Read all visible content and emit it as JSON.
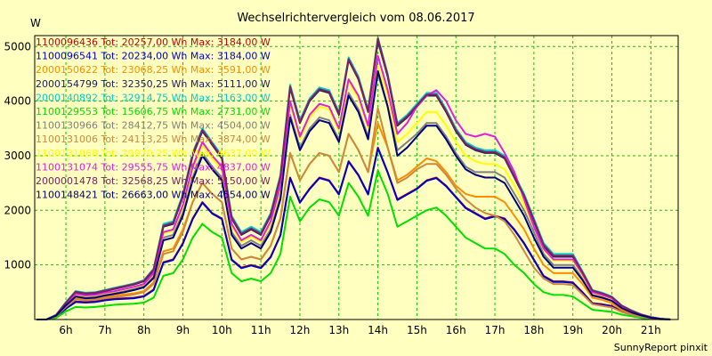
{
  "chart_data": {
    "type": "line",
    "title": "Wechselrichtervergleich vom 08.06.2017",
    "ylabel": "W",
    "credit": "SunnyReport pinxit",
    "ylim": [
      0,
      5200
    ],
    "xlim": [
      5.2,
      21.7
    ],
    "yticks": [
      1000,
      2000,
      3000,
      4000,
      5000
    ],
    "xticks": [
      6,
      7,
      8,
      9,
      10,
      11,
      12,
      13,
      14,
      15,
      16,
      17,
      18,
      19,
      20,
      21
    ],
    "xtick_labels": [
      "6h",
      "7h",
      "8h",
      "9h",
      "10h",
      "11h",
      "12h",
      "13h",
      "14h",
      "15h",
      "16h",
      "17h",
      "18h",
      "19h",
      "20h",
      "21h"
    ],
    "grid": true,
    "legend_position": "top-left",
    "x": [
      5.25,
      5.5,
      5.75,
      6,
      6.25,
      6.5,
      6.75,
      7,
      7.25,
      7.5,
      7.75,
      8,
      8.25,
      8.5,
      8.75,
      9,
      9.25,
      9.5,
      9.75,
      10,
      10.25,
      10.5,
      10.75,
      11,
      11.25,
      11.5,
      11.75,
      12,
      12.25,
      12.5,
      12.75,
      13,
      13.25,
      13.5,
      13.75,
      14,
      14.25,
      14.5,
      14.75,
      15,
      15.25,
      15.5,
      15.75,
      16,
      16.25,
      16.5,
      16.75,
      17,
      17.25,
      17.5,
      17.75,
      18,
      18.25,
      18.5,
      18.75,
      19,
      19.25,
      19.5,
      19.75,
      20,
      20.25,
      20.5,
      20.75,
      21,
      21.25,
      21.5
    ],
    "series": [
      {
        "name": "1100096436 Tot: 20257,00 Wh Max: 3184,00 W",
        "color": "#cc0000",
        "values": [
          0,
          0,
          50,
          200,
          330,
          320,
          330,
          360,
          380,
          390,
          400,
          430,
          550,
          1050,
          1100,
          1400,
          1850,
          2150,
          1950,
          1850,
          1100,
          950,
          1000,
          950,
          1150,
          1550,
          2600,
          2150,
          2400,
          2600,
          2550,
          2300,
          2900,
          2650,
          2300,
          3150,
          2700,
          2200,
          2300,
          2400,
          2550,
          2600,
          2450,
          2250,
          2050,
          1950,
          1850,
          1900,
          1850,
          1650,
          1400,
          1100,
          800,
          700,
          700,
          680,
          500,
          300,
          280,
          250,
          150,
          100,
          60,
          30,
          10,
          0
        ]
      },
      {
        "name": "1100096541 Tot: 20234,00 Wh Max: 3184,00 W",
        "color": "#0000cc",
        "values": [
          0,
          0,
          50,
          200,
          320,
          310,
          320,
          350,
          370,
          380,
          390,
          420,
          540,
          1040,
          1090,
          1390,
          1840,
          2140,
          1940,
          1840,
          1090,
          940,
          990,
          940,
          1140,
          1540,
          2590,
          2140,
          2390,
          2590,
          2540,
          2290,
          2890,
          2640,
          2290,
          3140,
          2690,
          2190,
          2290,
          2390,
          2540,
          2590,
          2440,
          2240,
          2040,
          1940,
          1840,
          1890,
          1840,
          1640,
          1390,
          1090,
          790,
          690,
          690,
          670,
          490,
          290,
          270,
          240,
          140,
          90,
          50,
          20,
          5,
          0
        ]
      },
      {
        "name": "2000150622 Tot: 23068,25 Wh Max: 3591,00 W",
        "color": "#ff8c00",
        "values": [
          0,
          0,
          60,
          240,
          400,
          380,
          390,
          420,
          440,
          460,
          480,
          520,
          680,
          1250,
          1300,
          1650,
          2150,
          2500,
          2300,
          2150,
          1300,
          1100,
          1150,
          1100,
          1350,
          1850,
          3050,
          2550,
          2850,
          3050,
          3000,
          2700,
          3400,
          3100,
          2700,
          3600,
          3150,
          2550,
          2650,
          2800,
          2950,
          2900,
          2700,
          2450,
          2300,
          2250,
          2250,
          2250,
          2150,
          1900,
          1650,
          1300,
          1000,
          850,
          850,
          850,
          650,
          400,
          360,
          300,
          180,
          120,
          70,
          30,
          10,
          0
        ]
      },
      {
        "name": "2000154799 Tot: 32350,25 Wh Max: 5111,00 W",
        "color": "#202060",
        "values": [
          0,
          0,
          80,
          300,
          500,
          470,
          480,
          520,
          560,
          600,
          640,
          700,
          900,
          1700,
          1750,
          2250,
          3000,
          3450,
          3200,
          2950,
          1850,
          1550,
          1650,
          1550,
          1900,
          2600,
          4250,
          3600,
          4000,
          4200,
          4150,
          3750,
          4750,
          4400,
          3800,
          5100,
          4450,
          3550,
          3700,
          3900,
          4100,
          4100,
          3800,
          3450,
          3200,
          3100,
          3050,
          3050,
          2950,
          2600,
          2250,
          1800,
          1350,
          1150,
          1150,
          1150,
          850,
          520,
          470,
          400,
          250,
          160,
          90,
          40,
          15,
          0
        ]
      },
      {
        "name": "2000140892 Tot: 32914,75 Wh Max: 5163,00 W",
        "color": "#00cccc",
        "values": [
          0,
          0,
          85,
          320,
          520,
          490,
          500,
          540,
          580,
          620,
          660,
          720,
          930,
          1750,
          1800,
          2300,
          3050,
          3500,
          3250,
          3000,
          1900,
          1600,
          1700,
          1600,
          1950,
          2650,
          4300,
          3650,
          4050,
          4250,
          4200,
          3800,
          4800,
          4450,
          3850,
          5160,
          4500,
          3600,
          3750,
          3950,
          4150,
          4150,
          3850,
          3500,
          3250,
          3150,
          3100,
          3100,
          3000,
          2650,
          2300,
          1850,
          1400,
          1200,
          1200,
          1200,
          880,
          540,
          490,
          420,
          260,
          170,
          95,
          45,
          15,
          0
        ]
      },
      {
        "name": "1100129553 Tot: 15606,75 Wh Max: 2731,00 W",
        "color": "#00e000",
        "values": [
          0,
          0,
          30,
          150,
          230,
          220,
          230,
          250,
          270,
          280,
          290,
          310,
          400,
          800,
          850,
          1100,
          1500,
          1750,
          1600,
          1500,
          850,
          700,
          750,
          700,
          850,
          1200,
          2250,
          1800,
          2050,
          2200,
          2150,
          1900,
          2500,
          2250,
          1900,
          2730,
          2300,
          1700,
          1800,
          1900,
          2000,
          2050,
          1900,
          1700,
          1500,
          1400,
          1300,
          1300,
          1200,
          1000,
          850,
          650,
          500,
          450,
          450,
          420,
          300,
          180,
          160,
          140,
          90,
          60,
          30,
          15,
          5,
          0
        ]
      },
      {
        "name": "1100130966 Tot: 28412,75 Wh Max: 4504,00 W",
        "color": "#808080",
        "values": [
          0,
          0,
          70,
          270,
          440,
          410,
          420,
          460,
          490,
          520,
          560,
          610,
          790,
          1500,
          1550,
          1950,
          2600,
          3050,
          2800,
          2600,
          1600,
          1350,
          1450,
          1350,
          1650,
          2250,
          3750,
          3150,
          3500,
          3700,
          3650,
          3300,
          4150,
          3850,
          3350,
          4500,
          3900,
          3100,
          3250,
          3400,
          3600,
          3600,
          3350,
          3050,
          2800,
          2700,
          2700,
          2700,
          2600,
          2300,
          2000,
          1600,
          1200,
          1000,
          1000,
          1000,
          750,
          450,
          410,
          350,
          220,
          140,
          80,
          35,
          12,
          0
        ]
      },
      {
        "name": "1100131006 Tot: 24113,25 Wh Max: 3874,00 W",
        "color": "#cc8840",
        "values": [
          0,
          0,
          60,
          230,
          370,
          350,
          360,
          390,
          410,
          430,
          460,
          500,
          650,
          1200,
          1250,
          1600,
          2150,
          2500,
          2300,
          2150,
          1300,
          1100,
          1150,
          1100,
          1350,
          1850,
          3050,
          2550,
          2850,
          3050,
          3000,
          2700,
          3400,
          3100,
          2700,
          3870,
          3150,
          2500,
          2600,
          2750,
          2850,
          2850,
          2650,
          2400,
          2200,
          2050,
          1950,
          1900,
          1800,
          1550,
          1250,
          950,
          750,
          650,
          650,
          630,
          460,
          280,
          250,
          220,
          140,
          90,
          50,
          25,
          8,
          0
        ]
      },
      {
        "name": "1100131068 Tot: 29970,25 Wh Max: 4637,00 W",
        "color": "#ffff00",
        "values": [
          0,
          0,
          75,
          280,
          460,
          430,
          440,
          480,
          510,
          550,
          590,
          640,
          830,
          1580,
          1630,
          2050,
          2750,
          3200,
          2950,
          2750,
          1700,
          1420,
          1520,
          1420,
          1750,
          2400,
          3950,
          3300,
          3700,
          3900,
          3850,
          3450,
          4350,
          4050,
          3500,
          4630,
          4100,
          3250,
          3400,
          3600,
          3800,
          3800,
          3550,
          3250,
          3000,
          2900,
          2850,
          2850,
          2750,
          2450,
          2100,
          1700,
          1280,
          1080,
          1080,
          1080,
          800,
          490,
          440,
          380,
          240,
          150,
          85,
          38,
          12,
          0
        ]
      },
      {
        "name": "1100131074 Tot: 29555,75 Wh Max: 4837,00 W",
        "color": "#e020e0",
        "values": [
          0,
          0,
          75,
          290,
          470,
          440,
          450,
          490,
          520,
          560,
          600,
          650,
          850,
          1600,
          1650,
          2100,
          2800,
          3250,
          3000,
          2800,
          1750,
          1450,
          1550,
          1450,
          1800,
          2450,
          4000,
          3350,
          3750,
          3950,
          3900,
          3500,
          4400,
          4100,
          3550,
          4830,
          4200,
          3400,
          3600,
          3900,
          4100,
          4200,
          4000,
          3650,
          3400,
          3350,
          3400,
          3350,
          3050,
          2700,
          2200,
          1700,
          1300,
          1100,
          1100,
          1100,
          830,
          500,
          450,
          390,
          240,
          150,
          85,
          40,
          12,
          0
        ]
      },
      {
        "name": "2000001478 Tot: 32568,25 Wh Max: 5150,00 W",
        "color": "#802060",
        "values": [
          0,
          0,
          85,
          310,
          510,
          480,
          490,
          530,
          570,
          610,
          650,
          710,
          920,
          1720,
          1770,
          2270,
          3030,
          3470,
          3220,
          2970,
          1870,
          1570,
          1670,
          1570,
          1920,
          2620,
          4270,
          3620,
          4020,
          4220,
          4170,
          3770,
          4770,
          4420,
          3820,
          5150,
          4470,
          3570,
          3720,
          3920,
          4120,
          4120,
          3820,
          3470,
          3220,
          3120,
          3070,
          3070,
          2970,
          2620,
          2270,
          1820,
          1370,
          1170,
          1170,
          1170,
          860,
          530,
          480,
          410,
          255,
          165,
          92,
          42,
          14,
          0
        ]
      },
      {
        "name": "1100148421 Tot: 26663,00 Wh Max: 4554,00 W",
        "color": "#000080",
        "values": [
          0,
          0,
          70,
          260,
          420,
          390,
          400,
          440,
          470,
          500,
          540,
          590,
          760,
          1450,
          1500,
          1900,
          2550,
          3000,
          2750,
          2550,
          1550,
          1300,
          1400,
          1300,
          1600,
          2200,
          3700,
          3100,
          3450,
          3650,
          3600,
          3250,
          4100,
          3800,
          3300,
          4550,
          3900,
          3000,
          3150,
          3350,
          3550,
          3550,
          3300,
          3000,
          2750,
          2650,
          2600,
          2600,
          2500,
          2200,
          1900,
          1500,
          1150,
          950,
          950,
          950,
          720,
          440,
          400,
          340,
          210,
          130,
          75,
          32,
          10,
          0
        ]
      }
    ]
  }
}
